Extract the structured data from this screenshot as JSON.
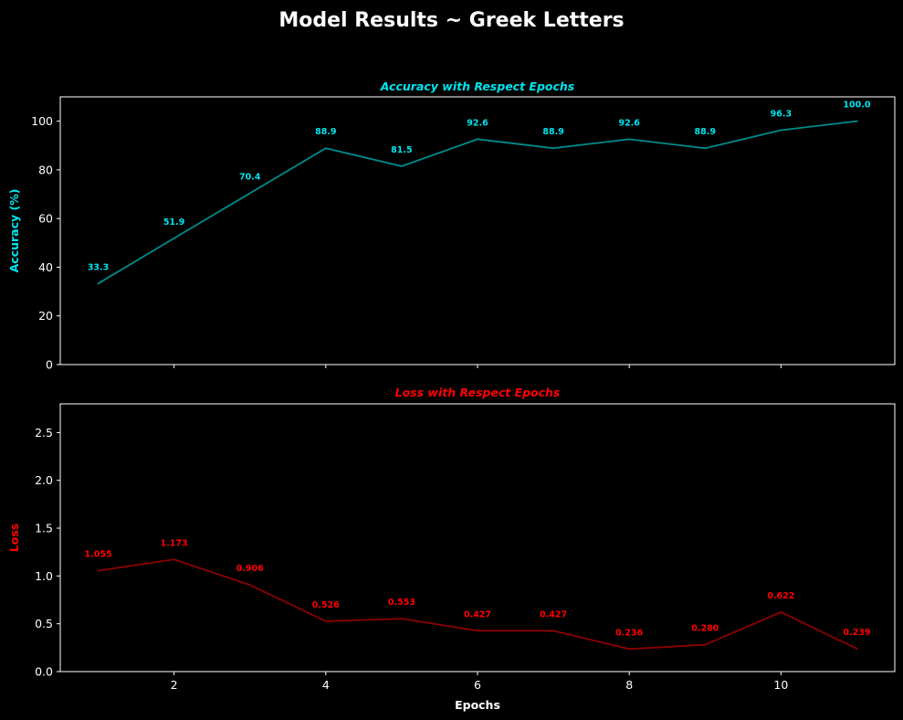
{
  "figure": {
    "title": "Model Results ~ Greek Letters",
    "background": "#000000"
  },
  "chart_data": [
    {
      "type": "line",
      "title": "Accuracy with Respect Epochs",
      "xlabel": "",
      "ylabel": "Accuracy (%)",
      "color": "#00e5ee",
      "line_color": "#008b8b",
      "x": [
        1,
        2,
        3,
        4,
        5,
        6,
        7,
        8,
        9,
        10,
        11
      ],
      "series": [
        {
          "values": [
            33.3,
            51.9,
            70.4,
            88.9,
            81.5,
            92.6,
            88.9,
            92.6,
            88.9,
            96.3,
            100.0
          ]
        }
      ],
      "labels": [
        "33.3",
        "51.9",
        "70.4",
        "88.9",
        "81.5",
        "92.6",
        "88.9",
        "92.6",
        "88.9",
        "96.3",
        "100.0"
      ],
      "xlim": [
        0.5,
        11.5
      ],
      "ylim": [
        0,
        110
      ],
      "xticks": [
        2,
        4,
        6,
        8,
        10
      ],
      "xtick_labels_visible": false,
      "yticks": [
        0,
        20,
        40,
        60,
        80,
        100
      ],
      "ytick_labels": [
        "0",
        "20",
        "40",
        "60",
        "80",
        "100"
      ],
      "grid": false,
      "legend": "none"
    },
    {
      "type": "line",
      "title": "Loss with Respect Epochs",
      "xlabel": "Epochs",
      "ylabel": "Loss",
      "color": "#ff0000",
      "line_color": "#8b0000",
      "x": [
        1,
        2,
        3,
        4,
        5,
        6,
        7,
        8,
        9,
        10,
        11
      ],
      "series": [
        {
          "values": [
            1.055,
            1.173,
            0.906,
            0.526,
            0.553,
            0.427,
            0.427,
            0.236,
            0.28,
            0.622,
            0.239
          ]
        }
      ],
      "labels": [
        "1.055",
        "1.173",
        "0.906",
        "0.526",
        "0.553",
        "0.427",
        "0.427",
        "0.236",
        "0.280",
        "0.622",
        "0.239"
      ],
      "xlim": [
        0.5,
        11.5
      ],
      "ylim": [
        0,
        2.8
      ],
      "xticks": [
        2,
        4,
        6,
        8,
        10
      ],
      "xtick_labels": [
        "2",
        "4",
        "6",
        "8",
        "10"
      ],
      "xtick_labels_visible": true,
      "yticks": [
        0,
        0.5,
        1.0,
        1.5,
        2.0,
        2.5
      ],
      "ytick_labels": [
        "0.0",
        "0.5",
        "1.0",
        "1.5",
        "2.0",
        "2.5"
      ],
      "grid": false,
      "legend": "none"
    }
  ]
}
